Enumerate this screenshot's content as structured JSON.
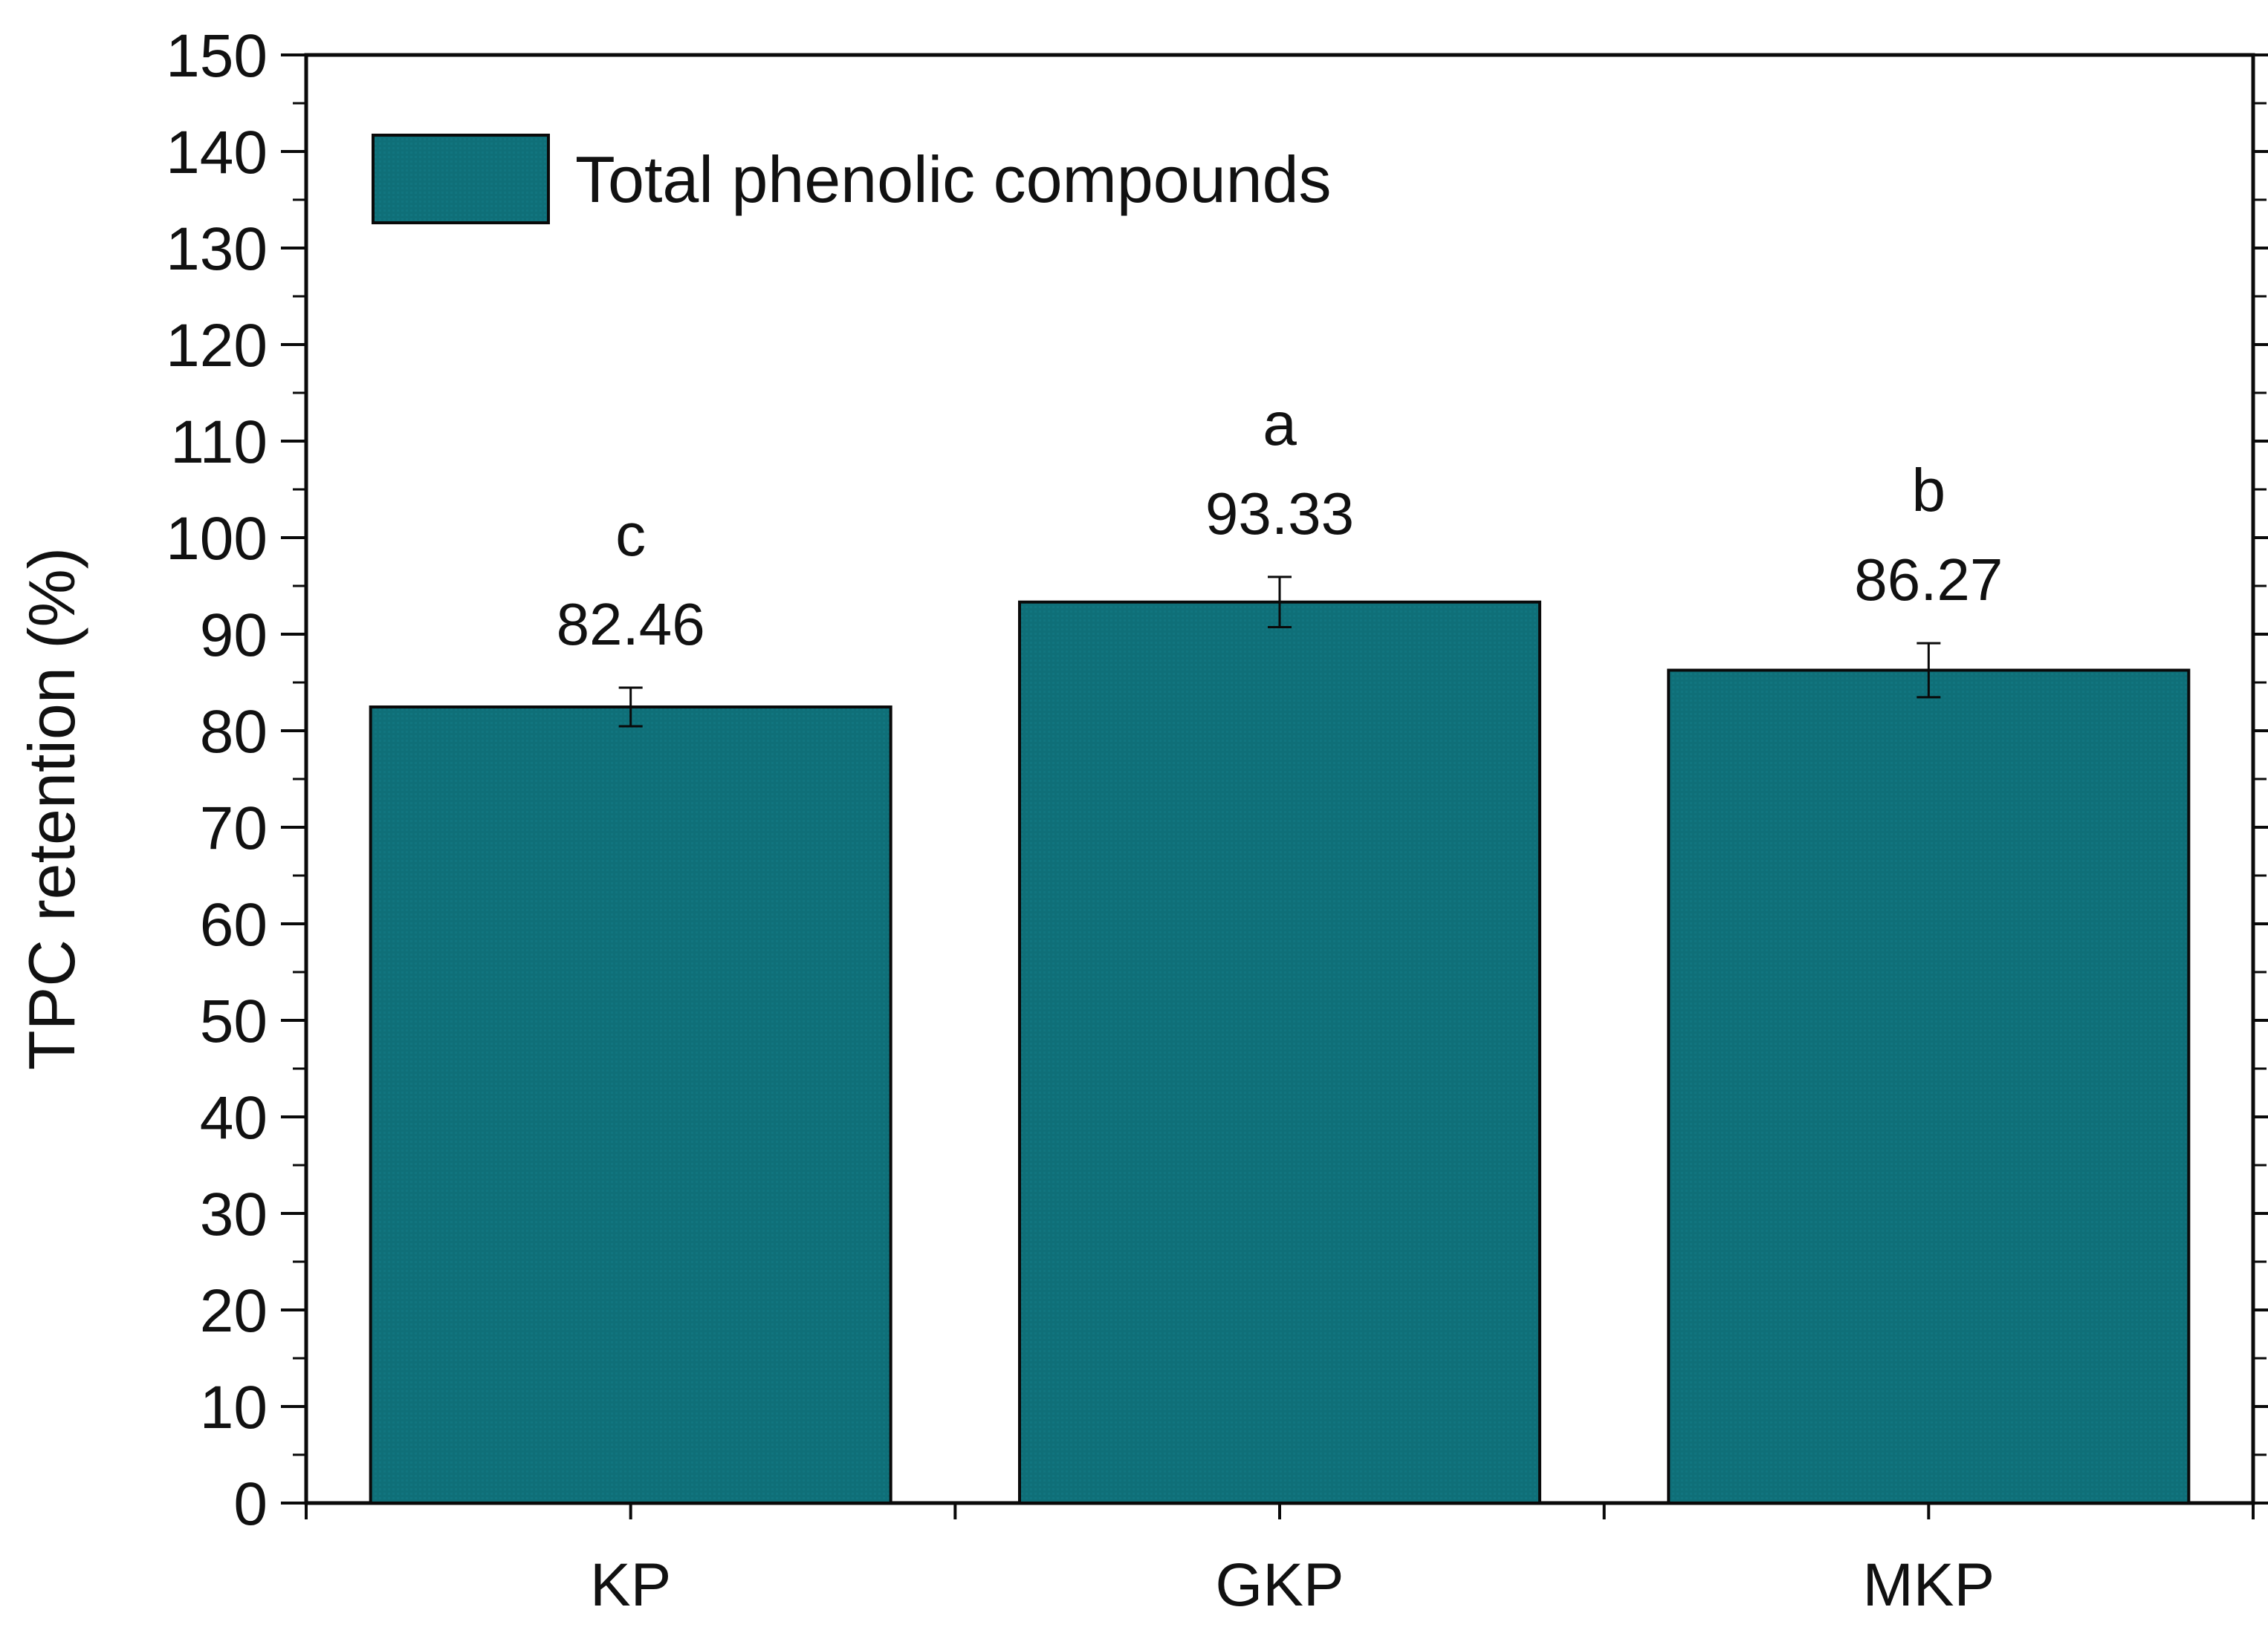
{
  "chart_data": {
    "type": "bar",
    "title": "",
    "xlabel": "",
    "ylabel": "TPC retention (%)",
    "ylim": [
      0,
      150
    ],
    "yticks": [
      0,
      10,
      20,
      30,
      40,
      50,
      60,
      70,
      80,
      90,
      100,
      110,
      120,
      130,
      140,
      150
    ],
    "categories": [
      "KP",
      "GKP",
      "MKP"
    ],
    "series": [
      {
        "name": "Total phenolic compounds",
        "values": [
          82.46,
          93.33,
          86.27
        ],
        "errors": [
          2.0,
          2.6,
          2.8
        ],
        "value_labels": [
          "82.46",
          "93.33",
          "86.27"
        ],
        "significance": [
          "c",
          "a",
          "b"
        ],
        "color": "#0f6f78"
      }
    ],
    "legend": {
      "position": "top-left"
    },
    "grid": false
  }
}
